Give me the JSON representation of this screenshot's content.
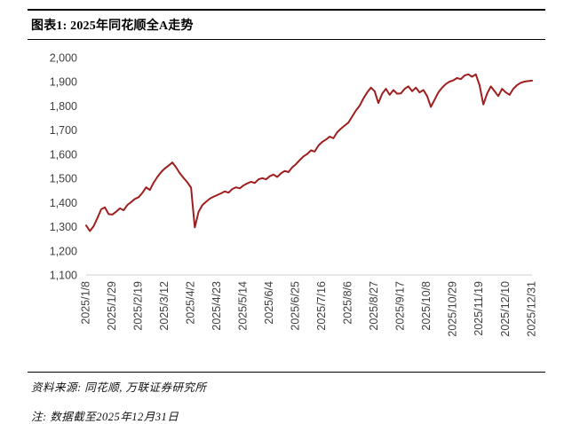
{
  "page": {
    "figure_title": "图表1: 2025年同花顺全A走势",
    "source": "资料来源: 同花顺, 万联证券研究所",
    "note": "注: 数据截至2025年12月31日"
  },
  "chart_data": {
    "type": "line",
    "title": "2025年同花顺全A走势",
    "xlabel": "",
    "ylabel": "",
    "ylim": [
      1100,
      2000
    ],
    "y_tick_step": 100,
    "grid": false,
    "legend": "none",
    "line_color": "#9E1F1F",
    "x_tick_labels": [
      "2025/1/8",
      "2025/1/29",
      "2025/2/19",
      "2025/3/12",
      "2025/4/2",
      "2025/4/23",
      "2025/5/14",
      "2025/6/4",
      "2025/6/25",
      "2025/7/16",
      "2025/8/6",
      "2025/8/27",
      "2025/9/17",
      "2025/10/8",
      "2025/10/29",
      "2025/11/19",
      "2025/12/10",
      "2025/12/31"
    ],
    "values": [
      1305,
      1282,
      1302,
      1336,
      1372,
      1380,
      1352,
      1350,
      1362,
      1376,
      1368,
      1390,
      1402,
      1415,
      1422,
      1440,
      1463,
      1452,
      1482,
      1506,
      1526,
      1541,
      1553,
      1566,
      1546,
      1521,
      1502,
      1484,
      1462,
      1297,
      1362,
      1389,
      1403,
      1416,
      1424,
      1431,
      1438,
      1446,
      1441,
      1456,
      1463,
      1459,
      1471,
      1479,
      1486,
      1481,
      1496,
      1501,
      1496,
      1509,
      1516,
      1506,
      1521,
      1531,
      1526,
      1546,
      1559,
      1576,
      1591,
      1601,
      1616,
      1611,
      1636,
      1651,
      1661,
      1673,
      1666,
      1691,
      1706,
      1719,
      1731,
      1756,
      1781,
      1801,
      1831,
      1856,
      1876,
      1861,
      1812,
      1851,
      1871,
      1846,
      1866,
      1851,
      1852,
      1871,
      1881,
      1861,
      1876,
      1856,
      1866,
      1841,
      1796,
      1826,
      1856,
      1876,
      1891,
      1901,
      1906,
      1916,
      1911,
      1926,
      1931,
      1921,
      1931,
      1886,
      1806,
      1851,
      1881,
      1861,
      1841,
      1871,
      1856,
      1846,
      1871,
      1886,
      1896,
      1901,
      1903,
      1905
    ]
  }
}
